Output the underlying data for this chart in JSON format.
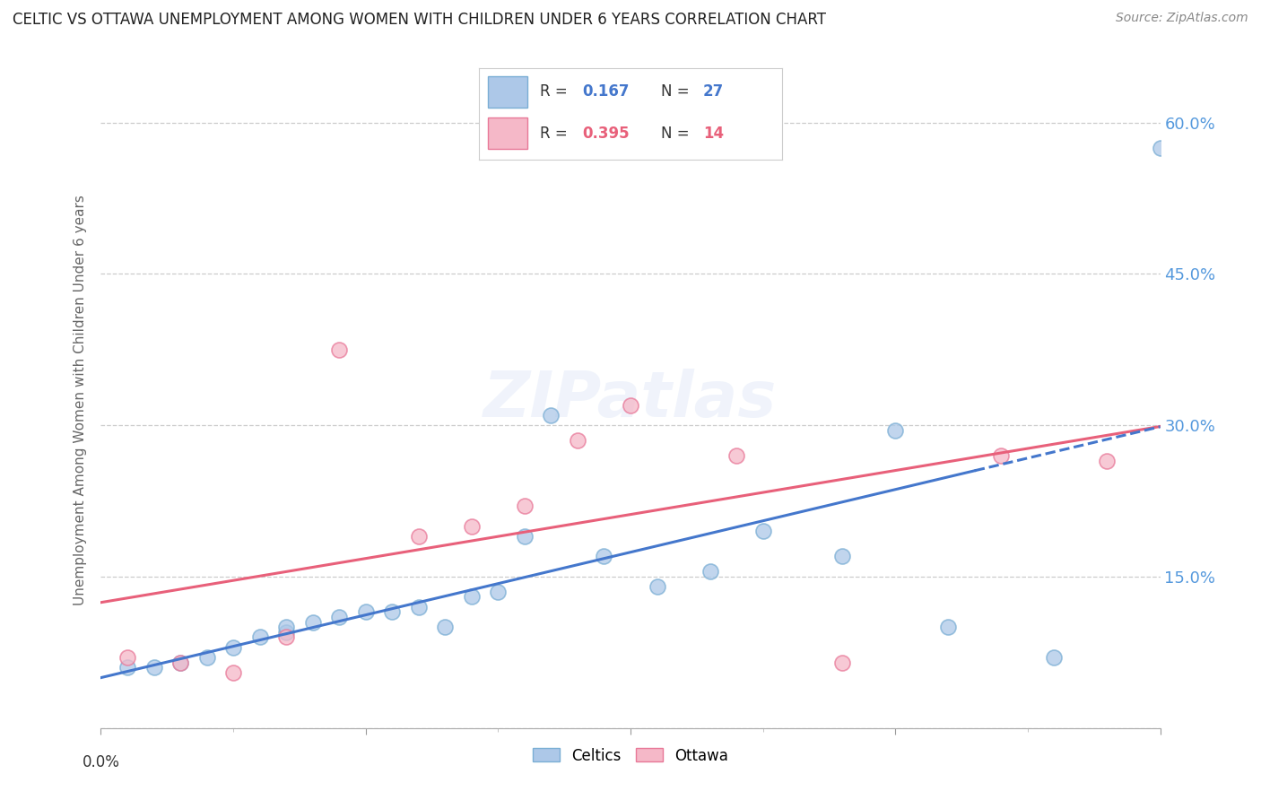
{
  "title": "CELTIC VS OTTAWA UNEMPLOYMENT AMONG WOMEN WITH CHILDREN UNDER 6 YEARS CORRELATION CHART",
  "source": "Source: ZipAtlas.com",
  "ylabel": "Unemployment Among Women with Children Under 6 years",
  "watermark": "ZIPatlas",
  "xlim": [
    0.0,
    0.04
  ],
  "ylim": [
    0.0,
    0.65
  ],
  "yticks": [
    0.0,
    0.15,
    0.3,
    0.45,
    0.6
  ],
  "ytick_labels": [
    "",
    "15.0%",
    "30.0%",
    "45.0%",
    "60.0%"
  ],
  "grid_color": "#cccccc",
  "background_color": "#ffffff",
  "celtics_color": "#adc8e8",
  "celtics_edge_color": "#7aaed4",
  "ottawa_color": "#f5b8c8",
  "ottawa_edge_color": "#e87898",
  "legend_R_celtics": "0.167",
  "legend_N_celtics": "27",
  "legend_R_ottawa": "0.395",
  "legend_N_ottawa": "14",
  "celtics_x": [
    0.001,
    0.002,
    0.003,
    0.004,
    0.005,
    0.006,
    0.007,
    0.007,
    0.008,
    0.009,
    0.01,
    0.011,
    0.012,
    0.013,
    0.014,
    0.015,
    0.016,
    0.017,
    0.019,
    0.021,
    0.023,
    0.025,
    0.028,
    0.03,
    0.032,
    0.036,
    0.04
  ],
  "celtics_y": [
    0.06,
    0.06,
    0.065,
    0.07,
    0.08,
    0.09,
    0.095,
    0.1,
    0.105,
    0.11,
    0.115,
    0.115,
    0.12,
    0.1,
    0.13,
    0.135,
    0.19,
    0.31,
    0.17,
    0.14,
    0.155,
    0.195,
    0.17,
    0.295,
    0.1,
    0.07,
    0.575
  ],
  "ottawa_x": [
    0.001,
    0.003,
    0.005,
    0.007,
    0.009,
    0.012,
    0.014,
    0.016,
    0.018,
    0.02,
    0.024,
    0.028,
    0.034,
    0.038
  ],
  "ottawa_y": [
    0.07,
    0.065,
    0.055,
    0.09,
    0.375,
    0.19,
    0.2,
    0.22,
    0.285,
    0.32,
    0.27,
    0.065,
    0.27,
    0.265
  ],
  "celtics_scatter_size": 150,
  "ottawa_scatter_size": 150,
  "celtics_trendline_color": "#4477cc",
  "ottawa_trendline_color": "#e8607a",
  "xtick_positions": [
    0.0,
    0.01,
    0.02,
    0.03,
    0.04
  ],
  "xtick_minor_positions": [
    0.005,
    0.015,
    0.025,
    0.035
  ]
}
